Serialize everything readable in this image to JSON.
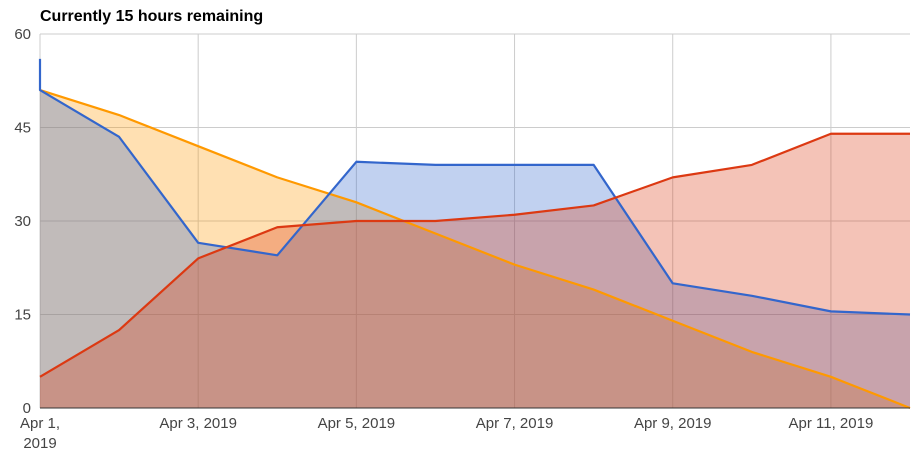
{
  "chart_data": {
    "type": "area",
    "title": "Currently 15 hours remaining",
    "xlabel": "",
    "ylabel": "",
    "ylim": [
      0,
      60
    ],
    "y_ticks": [
      "0",
      "15",
      "30",
      "45",
      "60"
    ],
    "x_ticks": [
      {
        "day": 1,
        "label": "Apr 1,",
        "label2": "2019"
      },
      {
        "day": 3,
        "label": "Apr 3, 2019"
      },
      {
        "day": 5,
        "label": "Apr 5, 2019"
      },
      {
        "day": 7,
        "label": "Apr 7, 2019"
      },
      {
        "day": 9,
        "label": "Apr 9, 2019"
      },
      {
        "day": 11,
        "label": "Apr 11, 2019"
      }
    ],
    "x_dates": [
      "2019-04-01",
      "2019-04-12"
    ],
    "grid": true,
    "legend": "none",
    "series": [
      {
        "color": "#ff9900",
        "points": [
          [
            1,
            51
          ],
          [
            2,
            47
          ],
          [
            3,
            42
          ],
          [
            4,
            37
          ],
          [
            5,
            33
          ],
          [
            6,
            28
          ],
          [
            7,
            23
          ],
          [
            8,
            19
          ],
          [
            9,
            14
          ],
          [
            10,
            9
          ],
          [
            11,
            5
          ],
          [
            12,
            0
          ]
        ]
      },
      {
        "color": "#3366cc",
        "points": [
          [
            1,
            56
          ],
          [
            1,
            51
          ],
          [
            2,
            43.5
          ],
          [
            3,
            26.5
          ],
          [
            4,
            24.5
          ],
          [
            5,
            39.5
          ],
          [
            6,
            39
          ],
          [
            7,
            39
          ],
          [
            8,
            39
          ],
          [
            9,
            20
          ],
          [
            10,
            18
          ],
          [
            11,
            15.5
          ],
          [
            12,
            15
          ]
        ]
      },
      {
        "color": "#dc3912",
        "points": [
          [
            1,
            5
          ],
          [
            2,
            12.5
          ],
          [
            3,
            24
          ],
          [
            4,
            29
          ],
          [
            5,
            30
          ],
          [
            6,
            30
          ],
          [
            7,
            31
          ],
          [
            8,
            32.5
          ],
          [
            9,
            37
          ],
          [
            10,
            39
          ],
          [
            11,
            44
          ],
          [
            12,
            44
          ]
        ]
      }
    ]
  }
}
